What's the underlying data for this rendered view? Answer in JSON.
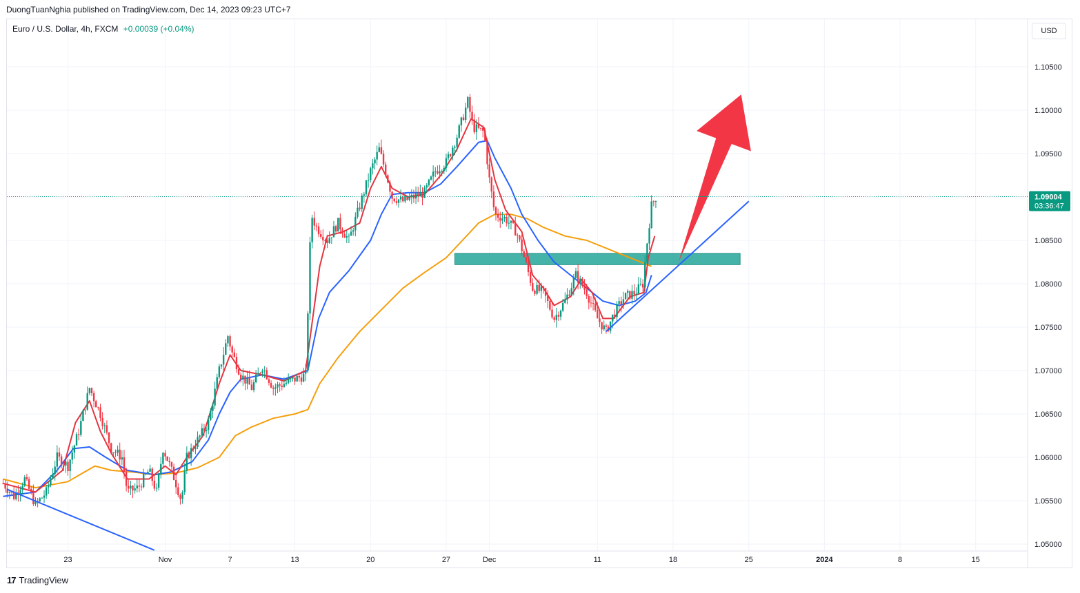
{
  "header": {
    "published_text": "DuongTuanNghia published on TradingView.com, Dec 14, 2023 09:23 UTC+7"
  },
  "legend": {
    "symbol_text": "Euro / U.S. Dollar, 4h, FXCM",
    "change_text": "+0.00039 (+0.04%)"
  },
  "currency_label": "USD",
  "footer": {
    "brand": "TradingView"
  },
  "colors": {
    "up": "#089981",
    "down": "#f23645",
    "ema_fast": "#e5343f",
    "ema_mid": "#2962ff",
    "ema_slow": "#f59e0b",
    "zone": "#26a69a",
    "arrow": "#f23645",
    "trendline": "#2962ff"
  },
  "chart_data": {
    "type": "candlestick",
    "symbol": "EURUSD",
    "timeframe": "4h",
    "ylim": [
      1.0475,
      1.1105
    ],
    "y_ticks": [
      "1.10500",
      "1.10000",
      "1.09500",
      "1.09000",
      "1.08500",
      "1.08000",
      "1.07500",
      "1.07000",
      "1.06500",
      "1.06000",
      "1.05500",
      "1.05000"
    ],
    "x_ticks": [
      {
        "label": "23",
        "day": 23
      },
      {
        "label": "Nov",
        "day": 32
      },
      {
        "label": "7",
        "day": 38
      },
      {
        "label": "13",
        "day": 44
      },
      {
        "label": "20",
        "day": 51
      },
      {
        "label": "27",
        "day": 58
      },
      {
        "label": "Dec",
        "day": 62
      },
      {
        "label": "11",
        "day": 72
      },
      {
        "label": "18",
        "day": 79
      },
      {
        "label": "25",
        "day": 86
      },
      {
        "label": "2024",
        "day": 93
      },
      {
        "label": "8",
        "day": 100
      },
      {
        "label": "15",
        "day": 107
      }
    ],
    "last_price": "1.09004",
    "countdown": "03:36:47",
    "price_path": [
      [
        17.0,
        1.057
      ],
      [
        18.0,
        1.0555
      ],
      [
        19.0,
        1.0575
      ],
      [
        20.0,
        1.0545
      ],
      [
        21.0,
        1.056
      ],
      [
        22.0,
        1.06
      ],
      [
        23.0,
        1.059
      ],
      [
        24.0,
        1.063
      ],
      [
        25.0,
        1.068
      ],
      [
        26.0,
        1.065
      ],
      [
        27.0,
        1.061
      ],
      [
        28.0,
        1.06
      ],
      [
        28.5,
        1.056
      ],
      [
        29.5,
        1.0565
      ],
      [
        30.5,
        1.0585
      ],
      [
        31.2,
        1.056
      ],
      [
        31.8,
        1.061
      ],
      [
        32.3,
        1.0595
      ],
      [
        33.0,
        1.057
      ],
      [
        33.5,
        1.055
      ],
      [
        34.0,
        1.06
      ],
      [
        35.0,
        1.062
      ],
      [
        36.0,
        1.064
      ],
      [
        37.0,
        1.07
      ],
      [
        37.8,
        1.074
      ],
      [
        38.2,
        1.072
      ],
      [
        39.0,
        1.0695
      ],
      [
        40.0,
        1.068
      ],
      [
        41.0,
        1.0705
      ],
      [
        42.0,
        1.068
      ],
      [
        43.0,
        1.0685
      ],
      [
        44.0,
        1.069
      ],
      [
        45.0,
        1.0695
      ],
      [
        45.5,
        1.088
      ],
      [
        46.0,
        1.0865
      ],
      [
        47.0,
        1.085
      ],
      [
        48.0,
        1.087
      ],
      [
        49.0,
        1.085
      ],
      [
        50.0,
        1.089
      ],
      [
        51.0,
        1.093
      ],
      [
        51.8,
        1.0955
      ],
      [
        52.5,
        1.0925
      ],
      [
        53.0,
        1.09
      ],
      [
        54.0,
        1.0895
      ],
      [
        55.0,
        1.09
      ],
      [
        56.0,
        1.0905
      ],
      [
        57.0,
        1.093
      ],
      [
        58.0,
        1.094
      ],
      [
        59.0,
        1.097
      ],
      [
        60.0,
        1.101
      ],
      [
        60.5,
        1.098
      ],
      [
        61.5,
        1.0975
      ],
      [
        62.0,
        1.092
      ],
      [
        62.5,
        1.088
      ],
      [
        63.5,
        1.0875
      ],
      [
        64.5,
        1.086
      ],
      [
        65.0,
        1.084
      ],
      [
        66.0,
        1.0795
      ],
      [
        67.0,
        1.079
      ],
      [
        68.0,
        1.076
      ],
      [
        69.0,
        1.078
      ],
      [
        70.0,
        1.081
      ],
      [
        71.0,
        1.079
      ],
      [
        72.0,
        1.076
      ],
      [
        72.8,
        1.0745
      ],
      [
        73.5,
        1.0765
      ],
      [
        74.5,
        1.0785
      ],
      [
        75.5,
        1.079
      ],
      [
        76.2,
        1.08
      ],
      [
        76.7,
        1.086
      ],
      [
        77.0,
        1.089
      ],
      [
        77.4,
        1.09
      ]
    ],
    "ema_fast": [
      [
        17,
        1.057
      ],
      [
        20,
        1.056
      ],
      [
        22.5,
        1.0585
      ],
      [
        23.7,
        1.064
      ],
      [
        25,
        1.0665
      ],
      [
        26,
        1.063
      ],
      [
        27,
        1.0605
      ],
      [
        28.5,
        1.0575
      ],
      [
        30.5,
        1.0575
      ],
      [
        32,
        1.059
      ],
      [
        33,
        1.058
      ],
      [
        34,
        1.06
      ],
      [
        35.5,
        1.0625
      ],
      [
        37,
        1.0685
      ],
      [
        38,
        1.0718
      ],
      [
        39,
        1.07
      ],
      [
        41,
        1.0695
      ],
      [
        43,
        1.0688
      ],
      [
        45,
        1.07
      ],
      [
        46.3,
        1.082
      ],
      [
        47,
        1.0855
      ],
      [
        48.5,
        1.086
      ],
      [
        50,
        1.087
      ],
      [
        51,
        1.091
      ],
      [
        52,
        1.0935
      ],
      [
        53,
        1.091
      ],
      [
        54.5,
        1.09
      ],
      [
        56,
        1.0903
      ],
      [
        57.5,
        1.0925
      ],
      [
        59,
        1.0955
      ],
      [
        60.3,
        1.099
      ],
      [
        61.5,
        1.098
      ],
      [
        62.5,
        1.092
      ],
      [
        63.5,
        1.0885
      ],
      [
        65,
        1.086
      ],
      [
        66,
        1.081
      ],
      [
        67,
        1.0795
      ],
      [
        68,
        1.0775
      ],
      [
        69.5,
        1.0785
      ],
      [
        70.5,
        1.0805
      ],
      [
        71.5,
        1.079
      ],
      [
        72.5,
        1.076
      ],
      [
        73.5,
        1.076
      ],
      [
        75,
        1.0785
      ],
      [
        76.3,
        1.079
      ],
      [
        76.7,
        1.083
      ],
      [
        77.3,
        1.0855
      ]
    ],
    "ema_mid": [
      [
        17,
        1.0555
      ],
      [
        20,
        1.056
      ],
      [
        22,
        1.0585
      ],
      [
        23.5,
        1.061
      ],
      [
        25,
        1.0612
      ],
      [
        26.5,
        1.06
      ],
      [
        28.5,
        1.0585
      ],
      [
        31,
        1.058
      ],
      [
        32.5,
        1.0583
      ],
      [
        34.5,
        1.0595
      ],
      [
        36,
        1.062
      ],
      [
        37,
        1.065
      ],
      [
        38,
        1.0675
      ],
      [
        39,
        1.069
      ],
      [
        41,
        1.0695
      ],
      [
        43,
        1.069
      ],
      [
        45.2,
        1.07
      ],
      [
        46.2,
        1.076
      ],
      [
        47.2,
        1.079
      ],
      [
        49,
        1.0815
      ],
      [
        51,
        1.085
      ],
      [
        52,
        1.088
      ],
      [
        53,
        1.0903
      ],
      [
        54.5,
        1.0905
      ],
      [
        56,
        1.0905
      ],
      [
        57.5,
        1.0915
      ],
      [
        59,
        1.0935
      ],
      [
        61,
        1.0963
      ],
      [
        61.8,
        1.0965
      ],
      [
        62.5,
        1.0945
      ],
      [
        64,
        1.091
      ],
      [
        65,
        1.088
      ],
      [
        66.5,
        1.085
      ],
      [
        68,
        1.0825
      ],
      [
        69.5,
        1.081
      ],
      [
        71,
        1.0795
      ],
      [
        72.5,
        1.078
      ],
      [
        74,
        1.0775
      ],
      [
        75.5,
        1.078
      ],
      [
        76.5,
        1.079
      ],
      [
        77,
        1.081
      ]
    ],
    "ema_slow": [
      [
        17,
        1.0575
      ],
      [
        20,
        1.0565
      ],
      [
        23,
        1.0572
      ],
      [
        25.5,
        1.059
      ],
      [
        27,
        1.0585
      ],
      [
        29,
        1.0583
      ],
      [
        31,
        1.058
      ],
      [
        33,
        1.0582
      ],
      [
        35,
        1.0588
      ],
      [
        37,
        1.06
      ],
      [
        38.5,
        1.0625
      ],
      [
        40,
        1.0635
      ],
      [
        42,
        1.0645
      ],
      [
        44,
        1.065
      ],
      [
        45.2,
        1.0655
      ],
      [
        46.3,
        1.0685
      ],
      [
        48,
        1.0715
      ],
      [
        50,
        1.0745
      ],
      [
        52,
        1.077
      ],
      [
        54,
        1.0795
      ],
      [
        56,
        1.0813
      ],
      [
        58,
        1.083
      ],
      [
        59.5,
        1.085
      ],
      [
        61,
        1.087
      ],
      [
        62.5,
        1.088
      ],
      [
        64,
        1.088
      ],
      [
        65.5,
        1.0875
      ],
      [
        67,
        1.0865
      ],
      [
        69,
        1.0855
      ],
      [
        71,
        1.085
      ],
      [
        73,
        1.084
      ],
      [
        75,
        1.083
      ],
      [
        77,
        1.082
      ]
    ],
    "support_zone": {
      "day_start": 58.8,
      "day_end": 85.2,
      "price_low": 1.0822,
      "price_high": 1.0835
    },
    "trendlines": [
      {
        "from": [
          17.0,
          1.0565
        ],
        "to": [
          31.0,
          1.0493
        ]
      },
      {
        "from": [
          72.8,
          1.0745
        ],
        "to": [
          86.0,
          1.0895
        ]
      }
    ],
    "arrow": {
      "from": [
        79.5,
        1.0825
      ],
      "to": [
        85.3,
        1.1018
      ]
    }
  }
}
